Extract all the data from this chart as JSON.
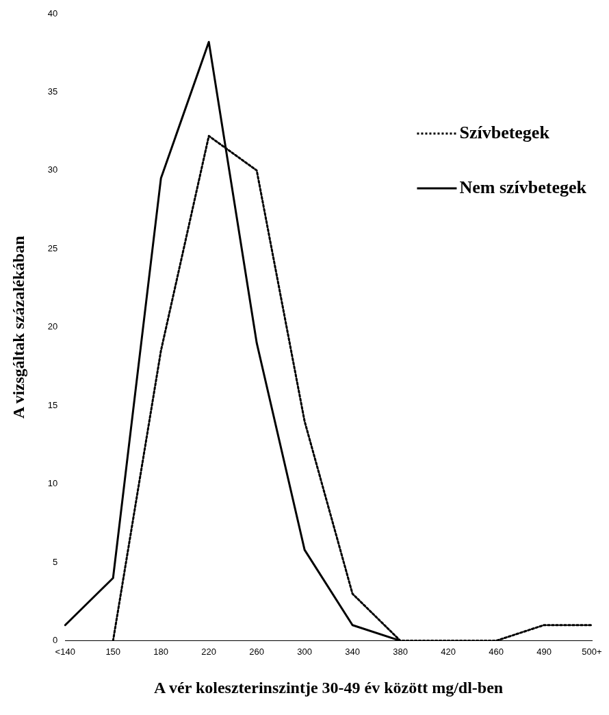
{
  "chart_data": {
    "type": "line",
    "xlabel": "A vér koleszterinszintje 30-49 év között mg/dl-ben",
    "ylabel": "A vizsgáltak százalékában",
    "categories": [
      "<140",
      "150",
      "180",
      "220",
      "260",
      "300",
      "340",
      "380",
      "420",
      "460",
      "490",
      "500+"
    ],
    "ylim": [
      0,
      40
    ],
    "yticks": [
      0,
      5,
      10,
      15,
      20,
      25,
      30,
      35,
      40
    ],
    "grid": false,
    "legend": "top right",
    "marker": "none",
    "series": [
      {
        "name": "Szívbetegek",
        "color": "#000000",
        "line_style": "dotted",
        "values": [
          null,
          0,
          18.5,
          32.2,
          30,
          14,
          3,
          0,
          0,
          0,
          1,
          1
        ]
      },
      {
        "name": "Nem szívbetegek",
        "color": "#000000",
        "line_style": "solid",
        "values": [
          1,
          4,
          29.5,
          38.2,
          19,
          5.8,
          1,
          0,
          null,
          null,
          null,
          null
        ]
      }
    ]
  }
}
